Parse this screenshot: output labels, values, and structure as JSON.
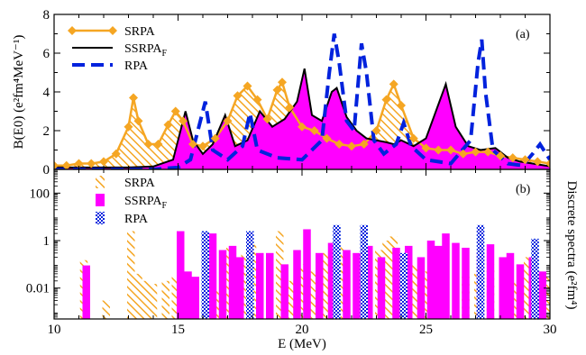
{
  "chart_data": [
    {
      "panel": "a",
      "type": "line",
      "panel_label": "(a)",
      "ylabel": "B(E0) (e²fm⁴MeV⁻¹)",
      "ylim": [
        0,
        8
      ],
      "yticks": [
        "0",
        "2",
        "4",
        "6",
        "8"
      ],
      "xlim": [
        10,
        30
      ],
      "legend_position": "top-left",
      "series": [
        {
          "name": "SRPA",
          "style": "orange line with diamond markers, hatched fill",
          "color": "#F5A623",
          "x": [
            10,
            10.5,
            11,
            11.5,
            12,
            12.5,
            13,
            13.2,
            13.4,
            13.8,
            14.2,
            14.6,
            14.9,
            15.2,
            15.6,
            16,
            16.5,
            17,
            17.4,
            17.8,
            18.2,
            18.6,
            19,
            19.2,
            19.5,
            20,
            20.5,
            21,
            21.5,
            22,
            22.5,
            23,
            23.4,
            23.7,
            24,
            24.5,
            25,
            25.5,
            26,
            26.5,
            27,
            27.5,
            28,
            28.5,
            29,
            29.5,
            30
          ],
          "y": [
            0.2,
            0.2,
            0.3,
            0.3,
            0.4,
            0.8,
            2.2,
            3.7,
            2.5,
            1.3,
            1.3,
            2.3,
            3.0,
            2.5,
            1.3,
            1.2,
            1.6,
            2.5,
            3.8,
            4.3,
            3.6,
            2.6,
            4.1,
            4.5,
            3.2,
            2.2,
            2.0,
            1.6,
            1.3,
            1.2,
            1.3,
            2.0,
            3.6,
            4.4,
            3.3,
            1.6,
            1.1,
            1.0,
            1.0,
            0.8,
            0.9,
            0.9,
            0.7,
            0.6,
            0.5,
            0.4,
            0.3
          ]
        },
        {
          "name": "SSRPA_F",
          "style": "black line, magenta fill",
          "color": "#000000",
          "fill": "#FF00FF",
          "x": [
            10,
            11,
            12,
            13,
            14,
            14.8,
            15.1,
            15.3,
            15.6,
            16,
            16.4,
            16.9,
            17.3,
            17.8,
            18.3,
            18.8,
            19.3,
            19.8,
            20.1,
            20.4,
            20.8,
            21.2,
            21.4,
            21.8,
            22.2,
            22.6,
            23,
            23.4,
            23.7,
            24,
            24.5,
            25,
            25.4,
            25.8,
            26.2,
            26.7,
            27.2,
            27.8,
            28.3,
            28.8,
            29.3,
            29.8,
            30
          ],
          "y": [
            0.1,
            0.1,
            0.1,
            0.1,
            0.15,
            0.5,
            2.0,
            3.0,
            1.5,
            0.8,
            1.3,
            2.8,
            1.2,
            1.5,
            3.0,
            2.2,
            2.6,
            3.5,
            5.2,
            2.8,
            2.5,
            4.0,
            4.2,
            2.7,
            2.0,
            1.6,
            1.5,
            1.4,
            1.3,
            1.5,
            1.2,
            1.6,
            3.0,
            4.4,
            2.2,
            1.2,
            1.0,
            1.1,
            0.6,
            0.4,
            0.3,
            0.2,
            0.15
          ]
        },
        {
          "name": "RPA",
          "style": "blue dashed line",
          "color": "#0022DD",
          "x": [
            10,
            12,
            14,
            15,
            15.5,
            15.9,
            16.1,
            16.4,
            17,
            17.6,
            17.9,
            18.2,
            19,
            20,
            20.8,
            21.1,
            21.3,
            21.5,
            21.8,
            22.1,
            22.4,
            22.6,
            22.9,
            23.3,
            23.8,
            24.1,
            24.4,
            25,
            26,
            26.8,
            27.1,
            27.25,
            27.4,
            27.7,
            28.3,
            28.9,
            29.3,
            29.6,
            30
          ],
          "y": [
            0,
            0,
            0,
            0.1,
            0.5,
            2.5,
            3.5,
            1.0,
            0.5,
            1.2,
            2.9,
            1.0,
            0.6,
            0.5,
            1.5,
            5.0,
            7.0,
            5.5,
            2.5,
            2.0,
            6.5,
            5.0,
            1.5,
            0.8,
            1.3,
            2.4,
            1.2,
            0.5,
            0.3,
            1.5,
            5.5,
            6.7,
            4.0,
            1.0,
            0.3,
            0.2,
            0.8,
            1.3,
            0.5
          ]
        }
      ]
    },
    {
      "panel": "b",
      "type": "bar",
      "panel_label": "(b)",
      "ylabel": "Discrete spectra (e²fm⁴)",
      "xlabel": "E (MeV)",
      "y_scale": "log",
      "ylim": [
        0.0005,
        1000
      ],
      "yticks": [
        "0.01",
        "1",
        "100"
      ],
      "xlim": [
        10,
        30
      ],
      "xticks": [
        "10",
        "15",
        "20",
        "25",
        "30"
      ],
      "legend_position": "top-left",
      "series": [
        {
          "name": "SRPA",
          "style": "orange hatched bars",
          "color": "#F5A623",
          "x": [
            11.2,
            12.1,
            13.1,
            13.4,
            13.7,
            14.0,
            14.5,
            14.9,
            15.6,
            16.1,
            16.6,
            17.1,
            17.7,
            18.0,
            18.7,
            19.1,
            19.6,
            20.0,
            20.5,
            21.0,
            21.6,
            22.4,
            23.1,
            23.4,
            23.7,
            24.0,
            24.6,
            25.1,
            25.7,
            26.6,
            27.1,
            27.6,
            28.6,
            29.1,
            29.9
          ],
          "values": [
            0.15,
            0.003,
            2.5,
            0.04,
            0.02,
            0.015,
            0.02,
            0.03,
            0.01,
            0.5,
            0.01,
            0.5,
            0.3,
            0.7,
            0.2,
            2.5,
            0.02,
            0.1,
            0.05,
            0.3,
            0.6,
            0.3,
            0.4,
            1.0,
            1.5,
            0.3,
            0.1,
            0.05,
            0.5,
            0.03,
            0.04,
            0.1,
            0.02,
            0.2,
            0.03
          ]
        },
        {
          "name": "SSRPA_F",
          "style": "magenta bars",
          "color": "#FF00FF",
          "x": [
            11.3,
            15.1,
            15.4,
            15.7,
            16.4,
            16.8,
            17.2,
            17.5,
            17.9,
            18.3,
            18.7,
            19.3,
            19.8,
            20.2,
            20.7,
            21.2,
            21.8,
            22.2,
            22.7,
            23.2,
            23.8,
            24.3,
            24.8,
            25.2,
            25.5,
            25.8,
            26.2,
            26.6,
            27.2,
            27.6,
            28.1,
            28.4,
            28.8,
            29.3,
            29.7
          ],
          "values": [
            0.09,
            2.5,
            0.05,
            0.03,
            2.0,
            0.4,
            0.6,
            0.2,
            0.5,
            0.3,
            0.3,
            0.1,
            0.4,
            3.0,
            0.3,
            0.8,
            0.4,
            0.3,
            0.6,
            0.2,
            0.5,
            0.6,
            0.2,
            1.0,
            0.6,
            2.0,
            0.8,
            0.5,
            0.3,
            0.7,
            0.2,
            0.3,
            0.1,
            0.2,
            0.05
          ]
        },
        {
          "name": "RPA",
          "style": "blue checkered bars",
          "color": "#0022DD",
          "x": [
            16.1,
            17.9,
            21.4,
            22.5,
            24.1,
            27.2,
            29.4
          ],
          "values": [
            2.5,
            2.5,
            4.5,
            4.5,
            0.3,
            4.5,
            1.2
          ]
        }
      ]
    }
  ]
}
